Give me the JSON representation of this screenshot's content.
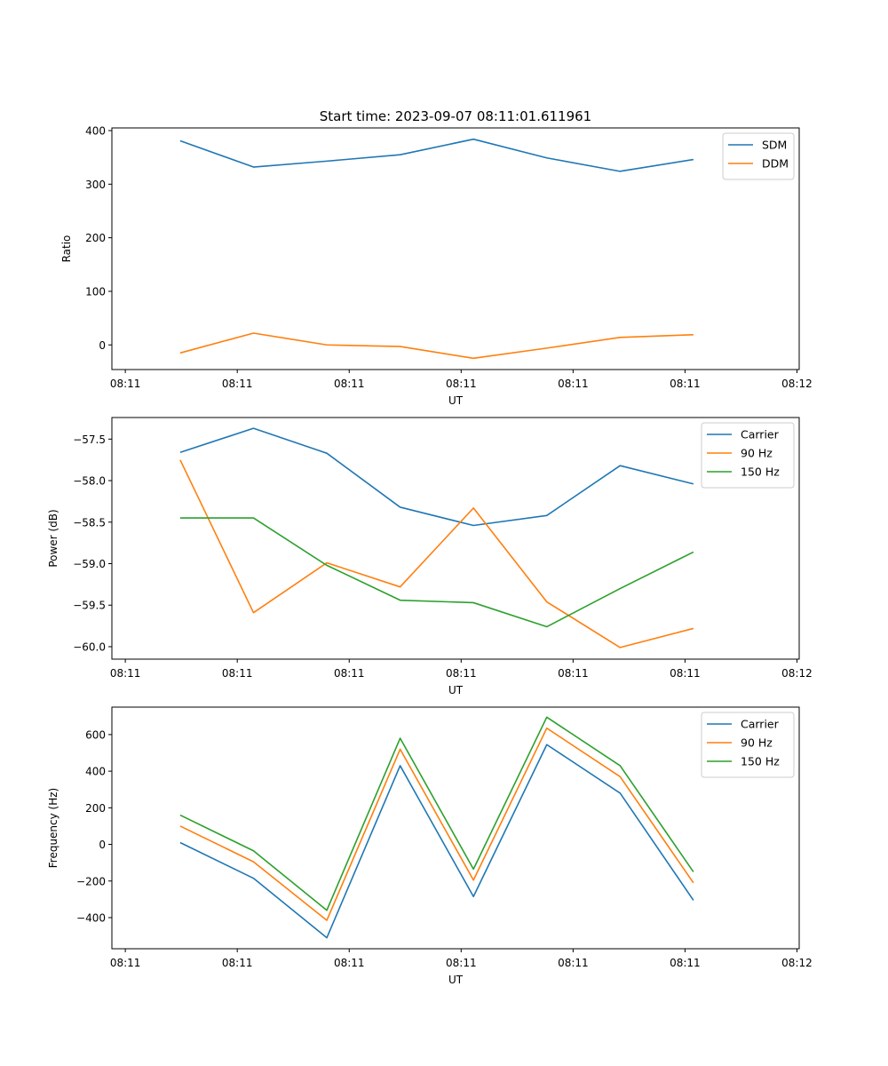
{
  "figure_title": "Start time: 2023-09-07 08:11:01.611961",
  "colors": {
    "blue": "#1f77b4",
    "orange": "#ff7f0e",
    "green": "#2ca02c"
  },
  "chart_data": [
    {
      "type": "line",
      "title": "Start time: 2023-09-07 08:11:01.611961",
      "xlabel": "UT",
      "ylabel": "Ratio",
      "x_tick_labels": [
        "08:11",
        "08:11",
        "08:11",
        "08:11",
        "08:11",
        "08:11",
        "08:12"
      ],
      "x_tick_positions": [
        0,
        1,
        2,
        3,
        4,
        5,
        6
      ],
      "xlim": [
        -0.12,
        6.02
      ],
      "x": [
        0.49,
        1.145,
        1.8,
        2.455,
        3.11,
        3.765,
        4.42,
        5.075
      ],
      "ylim": [
        -46,
        405
      ],
      "y_ticks": [
        0,
        100,
        200,
        300,
        400
      ],
      "y_tick_labels": [
        "0",
        "100",
        "200",
        "300",
        "400"
      ],
      "legend_position": "top-right",
      "grid": false,
      "series": [
        {
          "name": "SDM",
          "color": "#1f77b4",
          "values": [
            381,
            332,
            343,
            355,
            384,
            349,
            324,
            346
          ]
        },
        {
          "name": "DDM",
          "color": "#ff7f0e",
          "values": [
            -15,
            22,
            0,
            -3,
            -25,
            -6,
            14,
            19
          ]
        }
      ]
    },
    {
      "type": "line",
      "title": "",
      "xlabel": "UT",
      "ylabel": "Power (dB)",
      "x_tick_labels": [
        "08:11",
        "08:11",
        "08:11",
        "08:11",
        "08:11",
        "08:11",
        "08:12"
      ],
      "x_tick_positions": [
        0,
        1,
        2,
        3,
        4,
        5,
        6
      ],
      "xlim": [
        -0.12,
        6.02
      ],
      "x": [
        0.49,
        1.145,
        1.8,
        2.455,
        3.11,
        3.765,
        4.42,
        5.075
      ],
      "ylim": [
        -60.15,
        -57.24
      ],
      "y_ticks": [
        -60.0,
        -59.5,
        -59.0,
        -58.5,
        -58.0,
        -57.5
      ],
      "y_tick_labels": [
        "−60.0",
        "−59.5",
        "−59.0",
        "−58.5",
        "−58.0",
        "−57.5"
      ],
      "legend_position": "top-right",
      "grid": false,
      "series": [
        {
          "name": "Carrier",
          "color": "#1f77b4",
          "values": [
            -57.66,
            -57.37,
            -57.67,
            -58.32,
            -58.54,
            -58.42,
            -57.82,
            -58.04
          ]
        },
        {
          "name": "90 Hz",
          "color": "#ff7f0e",
          "values": [
            -57.75,
            -59.59,
            -58.99,
            -59.28,
            -58.33,
            -59.46,
            -60.01,
            -59.78
          ]
        },
        {
          "name": "150 Hz",
          "color": "#2ca02c",
          "values": [
            -58.45,
            -58.45,
            -59.02,
            -59.44,
            -59.47,
            -59.76,
            -59.3,
            -58.86
          ]
        }
      ]
    },
    {
      "type": "line",
      "title": "",
      "xlabel": "UT",
      "ylabel": "Frequency (Hz)",
      "x_tick_labels": [
        "08:11",
        "08:11",
        "08:11",
        "08:11",
        "08:11",
        "08:11",
        "08:12"
      ],
      "x_tick_positions": [
        0,
        1,
        2,
        3,
        4,
        5,
        6
      ],
      "xlim": [
        -0.12,
        6.02
      ],
      "x": [
        0.49,
        1.145,
        1.8,
        2.455,
        3.11,
        3.765,
        4.42,
        5.075
      ],
      "ylim": [
        -570,
        750
      ],
      "y_ticks": [
        -400,
        -200,
        0,
        200,
        400,
        600
      ],
      "y_tick_labels": [
        "−400",
        "−200",
        "0",
        "200",
        "400",
        "600"
      ],
      "legend_position": "top-right",
      "grid": false,
      "series": [
        {
          "name": "Carrier",
          "color": "#1f77b4",
          "values": [
            10,
            -185,
            -510,
            430,
            -285,
            545,
            280,
            -305
          ]
        },
        {
          "name": "90 Hz",
          "color": "#ff7f0e",
          "values": [
            100,
            -95,
            -415,
            520,
            -195,
            635,
            370,
            -210
          ]
        },
        {
          "name": "150 Hz",
          "color": "#2ca02c",
          "values": [
            160,
            -35,
            -360,
            580,
            -135,
            695,
            430,
            -150
          ]
        }
      ]
    }
  ]
}
